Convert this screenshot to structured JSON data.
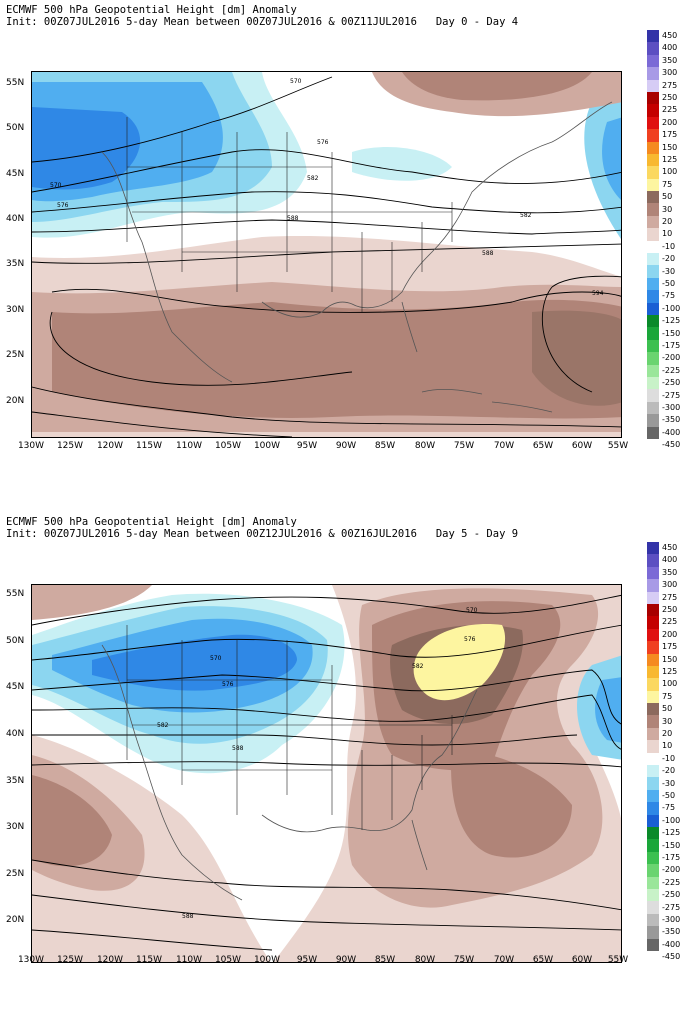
{
  "panels": [
    {
      "title_line1": "ECMWF 500 hPa Geopotential Height [dm] Anomaly",
      "title_line2": "Init: 00Z07JUL2016 5-day Mean between 00Z07JUL2016 & 00Z11JUL2016   Day 0 - Day 4",
      "contour_labels": [
        "570",
        "576",
        "582",
        "588",
        "594",
        "582",
        "588",
        "576",
        "570"
      ]
    },
    {
      "title_line1": "ECMWF 500 hPa Geopotential Height [dm] Anomaly",
      "title_line2": "Init: 00Z07JUL2016 5-day Mean between 00Z12JUL2016 & 00Z16JUL2016   Day 5 - Day 9",
      "contour_labels": [
        "570",
        "576",
        "582",
        "588",
        "582",
        "576",
        "570",
        "588"
      ]
    }
  ],
  "lat_labels": [
    "55N",
    "50N",
    "45N",
    "40N",
    "35N",
    "30N",
    "25N",
    "20N"
  ],
  "lon_labels": [
    "130W",
    "125W",
    "120W",
    "115W",
    "110W",
    "105W",
    "100W",
    "95W",
    "90W",
    "85W",
    "80W",
    "75W",
    "70W",
    "65W",
    "60W",
    "55W"
  ],
  "colorbar": {
    "labels": [
      "450",
      "400",
      "350",
      "300",
      "275",
      "250",
      "225",
      "200",
      "175",
      "150",
      "125",
      "100",
      "75",
      "50",
      "30",
      "20",
      "10",
      "-10",
      "-20",
      "-30",
      "-50",
      "-75",
      "-100",
      "-125",
      "-150",
      "-175",
      "-200",
      "-225",
      "-250",
      "-275",
      "-300",
      "-350",
      "-400",
      "-450"
    ],
    "colors": [
      "#3333a8",
      "#5c4fc2",
      "#7b6ad6",
      "#a89ae6",
      "#d6ccf5",
      "#a80000",
      "#c40000",
      "#e01010",
      "#f04020",
      "#f58a20",
      "#f8b830",
      "#fbd860",
      "#fdf5a0",
      "#8c6a5e",
      "#b08478",
      "#cfaaa0",
      "#ead5cf",
      "#ffffff",
      "#c8f0f4",
      "#8cd6f0",
      "#50aef0",
      "#2f88e6",
      "#1a5fd4",
      "#0a8a2a",
      "#1aa63a",
      "#3cc050",
      "#6ad470",
      "#9ae69a",
      "#c8f2c8",
      "#dddddd",
      "#bbbbbb",
      "#999999",
      "#666666"
    ]
  }
}
